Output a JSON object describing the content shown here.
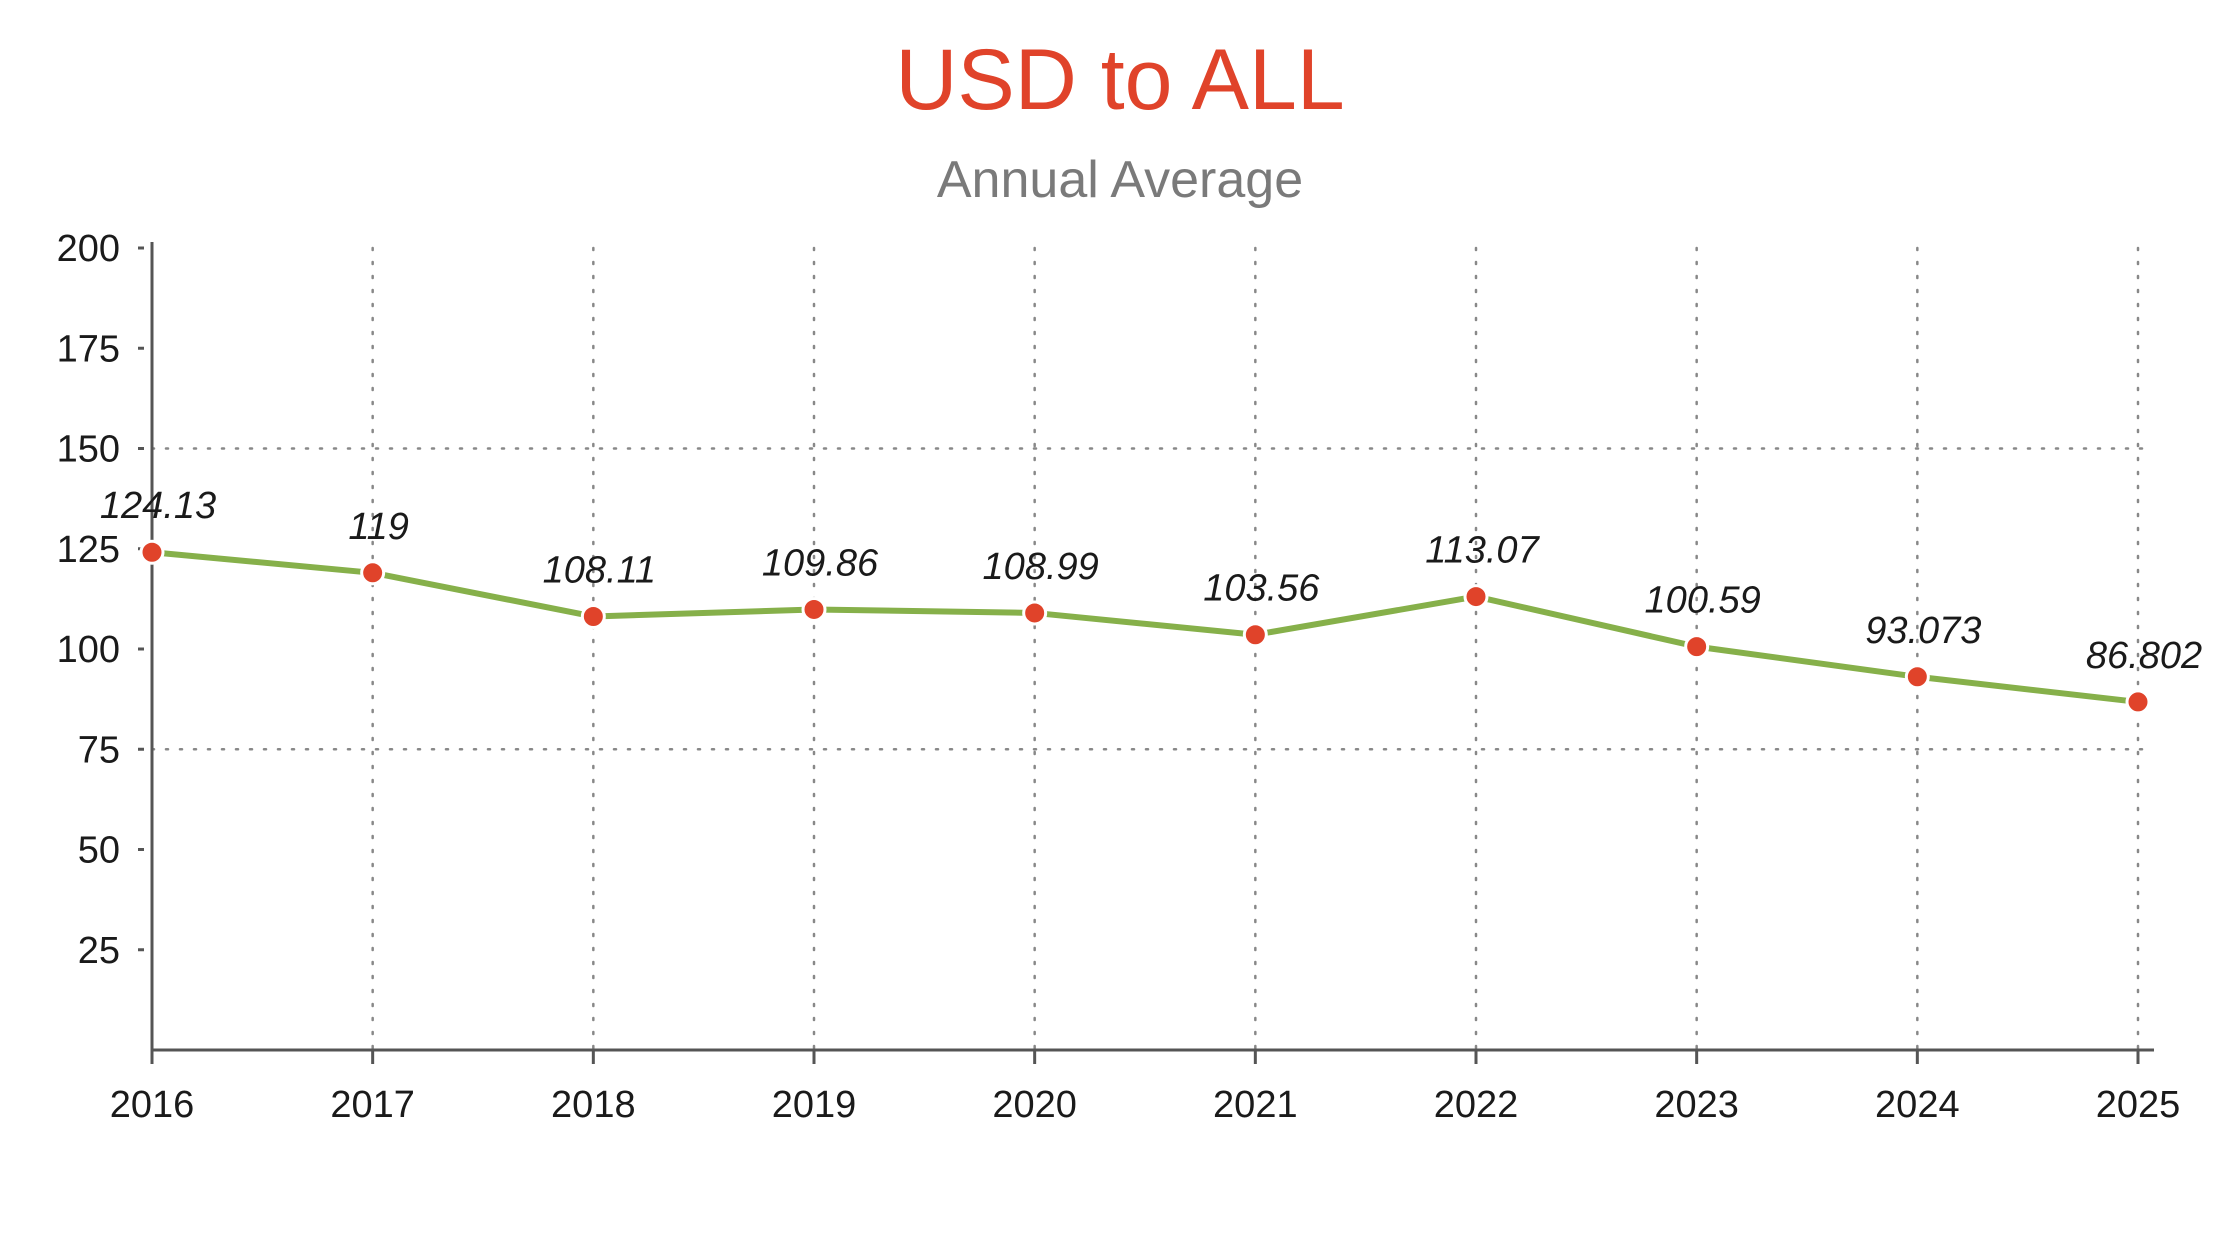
{
  "chart_data": {
    "type": "line",
    "title": "USD to ALL",
    "subtitle": "Annual Average",
    "categories": [
      "2016",
      "2017",
      "2018",
      "2019",
      "2020",
      "2021",
      "2022",
      "2023",
      "2024",
      "2025"
    ],
    "series": [
      {
        "values": [
          124.13,
          119,
          108.11,
          109.86,
          108.99,
          103.56,
          113.07,
          100.59,
          93.073,
          86.802
        ],
        "labels": [
          "124.13",
          "119",
          "108.11",
          "109.86",
          "108.99",
          "103.56",
          "113.07",
          "100.59",
          "93.073",
          "86.802"
        ]
      }
    ],
    "yticks": [
      25,
      50,
      75,
      100,
      125,
      150,
      175,
      200
    ],
    "ylim": [
      0,
      200
    ],
    "xlabel": "",
    "ylabel": "",
    "grid": {
      "vertical": true,
      "horizontal_at": [
        75,
        150
      ]
    },
    "colors": {
      "line": "#86b04a",
      "marker": "#e0432a",
      "title": "#e0432a",
      "subtitle": "#7a7a7a",
      "grid": "#888888",
      "axis": "#555555"
    }
  }
}
